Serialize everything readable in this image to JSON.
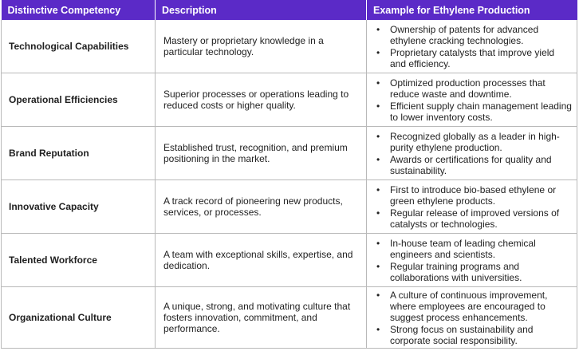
{
  "table": {
    "headers": [
      "Distinctive Competency",
      "Description",
      "Example for Ethylene Production"
    ],
    "rows": [
      {
        "competency": "Technological Capabilities",
        "description": "Mastery or proprietary knowledge in a particular technology.",
        "examples": [
          "Ownership of patents for advanced ethylene cracking technologies.",
          "Proprietary catalysts that improve yield and efficiency."
        ]
      },
      {
        "competency": "Operational Efficiencies",
        "description": "Superior processes or operations leading to reduced costs or higher quality.",
        "examples": [
          "Optimized production processes that reduce waste and downtime.",
          "Efficient supply chain management leading to lower inventory costs."
        ]
      },
      {
        "competency": "Brand Reputation",
        "description": "Established trust, recognition, and premium positioning in the market.",
        "examples": [
          "Recognized globally as a leader in high-purity ethylene production.",
          "Awards or certifications for quality and sustainability."
        ]
      },
      {
        "competency": "Innovative Capacity",
        "description": "A track record of pioneering new products, services, or processes.",
        "examples": [
          "First to introduce bio-based ethylene or green ethylene products.",
          "Regular release of improved versions of catalysts or technologies."
        ]
      },
      {
        "competency": "Talented Workforce",
        "description": "A team with exceptional skills, expertise, and dedication.",
        "examples": [
          "In-house team of leading chemical engineers and scientists.",
          "Regular training programs and collaborations with universities."
        ]
      },
      {
        "competency": "Organizational Culture",
        "description": "A unique, strong, and motivating culture that fosters innovation, commitment, and performance.",
        "examples": [
          "A culture of continuous improvement, where employees are encouraged to suggest process enhancements.",
          "Strong focus on sustainability and corporate social responsibility."
        ]
      }
    ],
    "bullet_glyph": "•"
  },
  "colors": {
    "header_bg": "#5b2ac7",
    "header_text": "#ffffff",
    "grid": "#b9b9b9"
  }
}
